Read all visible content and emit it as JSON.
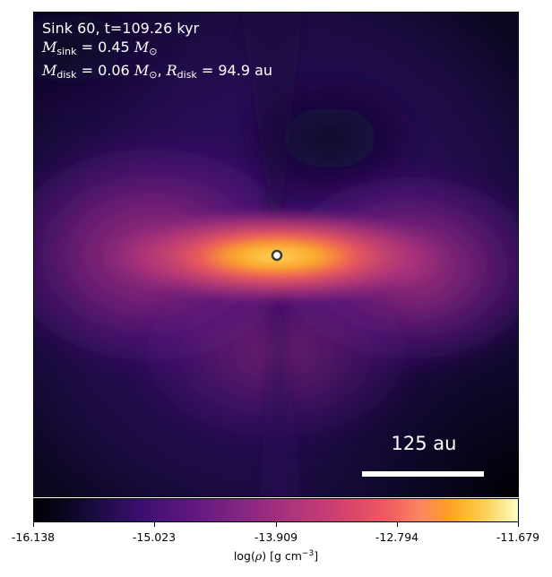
{
  "panel": {
    "sink_line": "Sink 60, t=109.26 kyr",
    "msink_symbol": "M",
    "msink_sub": "sink",
    "msink_value": " = 0.45",
    "msink_unit": "M",
    "msink_unit_sub": "⊙",
    "mdisk_symbol": "M",
    "mdisk_sub": "disk",
    "mdisk_value": " = 0.06",
    "mdisk_unit": "M",
    "mdisk_unit_sub": "⊙",
    "rdisk_symbol": "R",
    "rdisk_sub": "disk",
    "rdisk_value": " = 94.9",
    "rdisk_unit": "au",
    "separator": ", "
  },
  "scalebar": {
    "label": "125 au"
  },
  "colorbar": {
    "colormap": "inferno",
    "ticks": [
      "-16.138",
      "-15.023",
      "-13.909",
      "-12.794",
      "-11.679"
    ],
    "label_prefix": "log(",
    "label_symbol": "ρ",
    "label_suffix": ") [g cm",
    "label_exp": "−3",
    "label_close": "]"
  },
  "colors": {
    "background_cold": "#1f0e45",
    "disk_hot": "#fcb52c",
    "sink_marker_fill": "#ffffff",
    "sink_marker_edge": "#3c3c2a"
  }
}
